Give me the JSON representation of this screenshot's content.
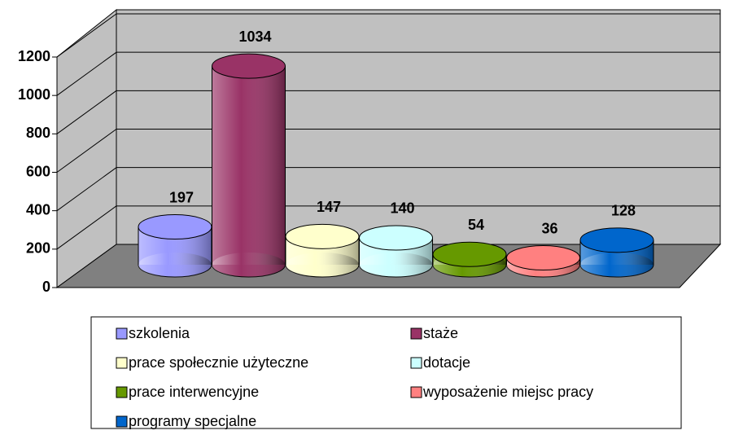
{
  "chart_data": {
    "type": "bar",
    "categories": [
      "szkolenia",
      "staże",
      "prace społecznie użyteczne",
      "dotacje",
      "prace interwencyjne",
      "wyposażenie miejsc pracy",
      "programy specjalne"
    ],
    "values": [
      197,
      1034,
      147,
      140,
      54,
      36,
      128
    ],
    "colors": [
      "#9999ff",
      "#993366",
      "#ffffcc",
      "#ccffff",
      "#669900",
      "#ff8080",
      "#0066cc"
    ],
    "ylim": [
      0,
      1200
    ],
    "yticks": [
      0,
      200,
      400,
      600,
      800,
      1000,
      1200
    ],
    "grid": true,
    "legend": "bottom"
  }
}
